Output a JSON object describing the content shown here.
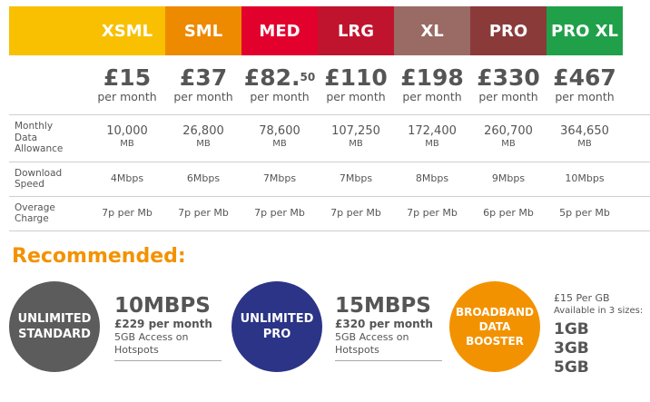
{
  "plans": [
    {
      "name": "XSML",
      "color": "#f8c000",
      "price": "£15",
      "price_sup": "",
      "per": "per month",
      "allowance": "10,000",
      "speed": "4Mbps",
      "overage": "7p per Mb"
    },
    {
      "name": "SML",
      "color": "#ee8a00",
      "price": "£37",
      "price_sup": "",
      "per": "per month",
      "allowance": "26,800",
      "speed": "6Mbps",
      "overage": "7p per Mb"
    },
    {
      "name": "MED",
      "color": "#e2002d",
      "price": "£82.",
      "price_sup": "50",
      "per": "per month",
      "allowance": "78,600",
      "speed": "7Mbps",
      "overage": "7p per Mb"
    },
    {
      "name": "LRG",
      "color": "#c0142e",
      "price": "£110",
      "price_sup": "",
      "per": "per month",
      "allowance": "107,250",
      "speed": "7Mbps",
      "overage": "7p per Mb"
    },
    {
      "name": "XL",
      "color": "#9a6a64",
      "price": "£198",
      "price_sup": "",
      "per": "per month",
      "allowance": "172,400",
      "speed": "8Mbps",
      "overage": "7p per Mb"
    },
    {
      "name": "PRO",
      "color": "#8b3a3a",
      "price": "£330",
      "price_sup": "",
      "per": "per month",
      "allowance": "260,700",
      "speed": "9Mbps",
      "overage": "6p per Mb"
    },
    {
      "name": "PRO XL",
      "color": "#21a04a",
      "price": "£467",
      "price_sup": "",
      "per": "per month",
      "allowance": "364,650",
      "speed": "10Mbps",
      "overage": "5p per Mb"
    }
  ],
  "allowance_unit": "MB",
  "row_labels": {
    "allowance": [
      "Monthly",
      "Data",
      "Allowance"
    ],
    "speed": [
      "Download",
      "Speed"
    ],
    "overage": [
      "Overage",
      "Charge"
    ]
  },
  "recommended": {
    "title": "Recommended:",
    "standard": {
      "circle_lines": [
        "UNLIMITED",
        "STANDARD"
      ],
      "circle_color": "#5c5c5c",
      "speed": "10MBPS",
      "price": "£229 per month",
      "hotspot_lines": [
        "5GB Access on",
        "Hotspots"
      ]
    },
    "pro": {
      "circle_lines": [
        "UNLIMITED",
        "PRO"
      ],
      "circle_color": "#2b3486",
      "speed": "15MBPS",
      "price": "£320 per month",
      "hotspot_lines": [
        "5GB Access on",
        "Hotspots"
      ]
    },
    "booster": {
      "circle_lines": [
        "BROADBAND",
        "DATA",
        "BOOSTER"
      ],
      "circle_color": "#f39200",
      "per_gb": "£15 Per GB",
      "available": "Available in 3 sizes:",
      "sizes": [
        "1GB",
        "3GB",
        "5GB"
      ]
    }
  }
}
